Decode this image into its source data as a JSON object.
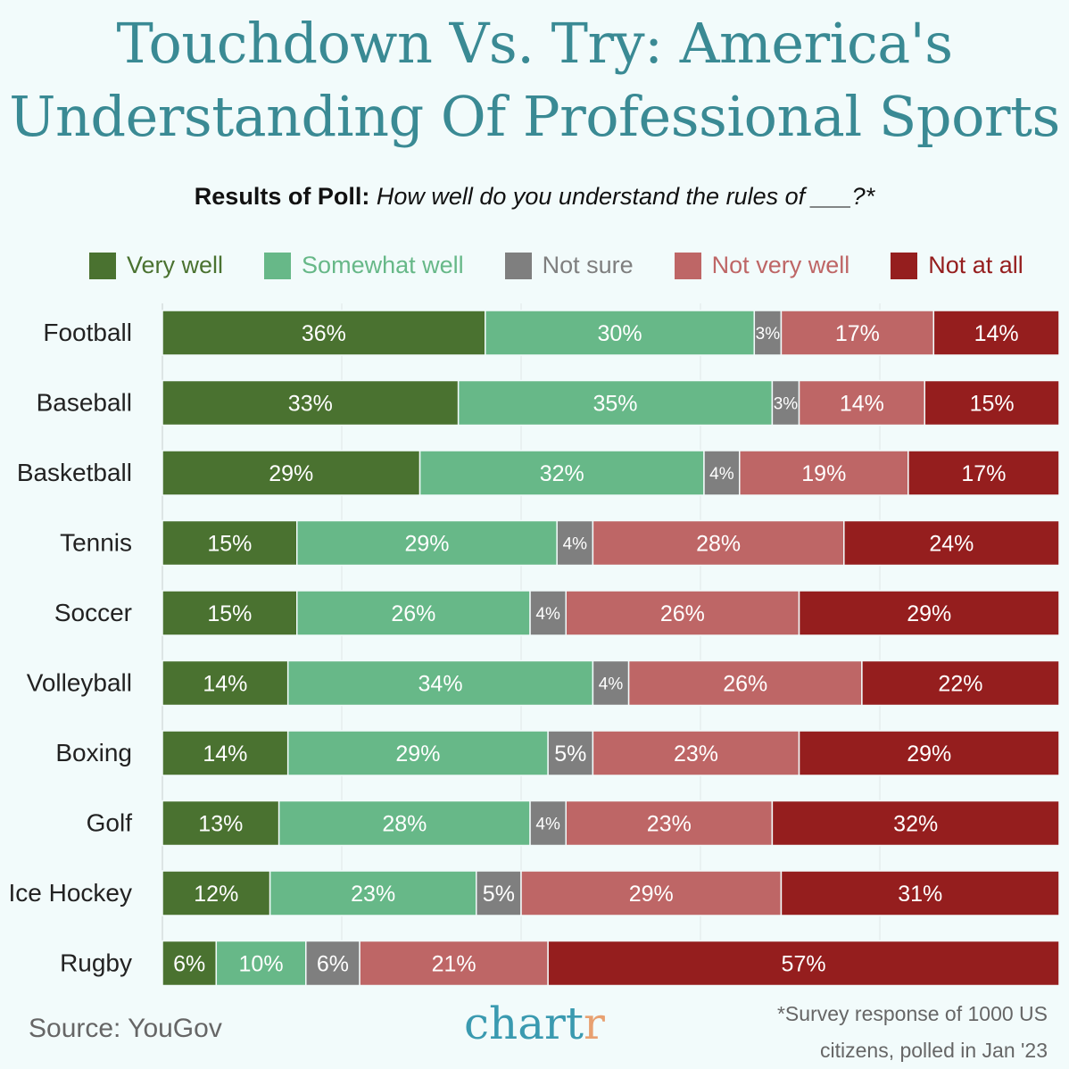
{
  "title_line1": "Touchdown Vs. Try: America's",
  "title_line2": "Understanding Of Professional Sports",
  "subtitle_bold": "Results of Poll:",
  "subtitle_italic": "How well do you understand the rules of ___?*",
  "source": "Source: YouGov",
  "logo": {
    "main": "chart",
    "accent": "r"
  },
  "footnote_line1": "*Survey response of 1000 US",
  "footnote_line2": "citizens, polled in Jan '23",
  "chart_data": {
    "type": "bar",
    "orientation": "horizontal",
    "stacked": true,
    "grid": true,
    "legend_position": "top",
    "categories": [
      "Football",
      "Baseball",
      "Basketball",
      "Tennis",
      "Soccer",
      "Volleyball",
      "Boxing",
      "Golf",
      "Ice Hockey",
      "Rugby"
    ],
    "series": [
      {
        "name": "Very well",
        "color": "#4a7230",
        "values": [
          36,
          33,
          29,
          15,
          15,
          14,
          14,
          13,
          12,
          6
        ]
      },
      {
        "name": "Somewhat well",
        "color": "#67b888",
        "values": [
          30,
          35,
          32,
          29,
          26,
          34,
          29,
          28,
          23,
          10
        ]
      },
      {
        "name": "Not sure",
        "color": "#7f7f7f",
        "values": [
          3,
          3,
          4,
          4,
          4,
          4,
          5,
          4,
          5,
          6
        ]
      },
      {
        "name": "Not very well",
        "color": "#be6666",
        "values": [
          17,
          14,
          19,
          28,
          26,
          26,
          23,
          23,
          29,
          21
        ]
      },
      {
        "name": "Not at all",
        "color": "#951e1e",
        "values": [
          14,
          15,
          17,
          24,
          29,
          22,
          29,
          32,
          31,
          57
        ]
      }
    ],
    "value_suffix": "%"
  }
}
